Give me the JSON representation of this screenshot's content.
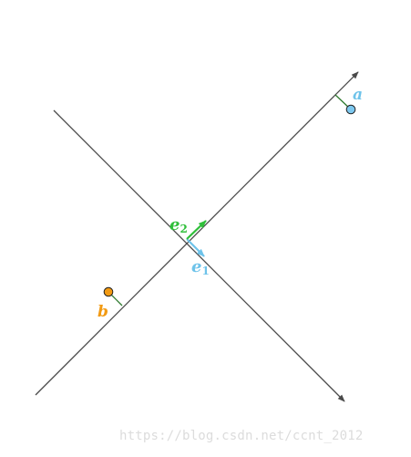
{
  "labels": {
    "a": "a",
    "b": "b",
    "e1": "e",
    "e1_sub": "1",
    "e2": "e",
    "e2_sub": "2"
  },
  "watermark": "https://blog.csdn.net/ccnt_2012",
  "colors": {
    "axis": "#4a4a4a",
    "e1": "#6ec3ea",
    "e2": "#2fbf3a",
    "point_a": "#7dc8ef",
    "point_b": "#f29a12",
    "projection": "#2f7a2f",
    "label_a": "#6ec3ea",
    "label_b": "#f29a12",
    "watermark": "#dcdcdc"
  }
}
